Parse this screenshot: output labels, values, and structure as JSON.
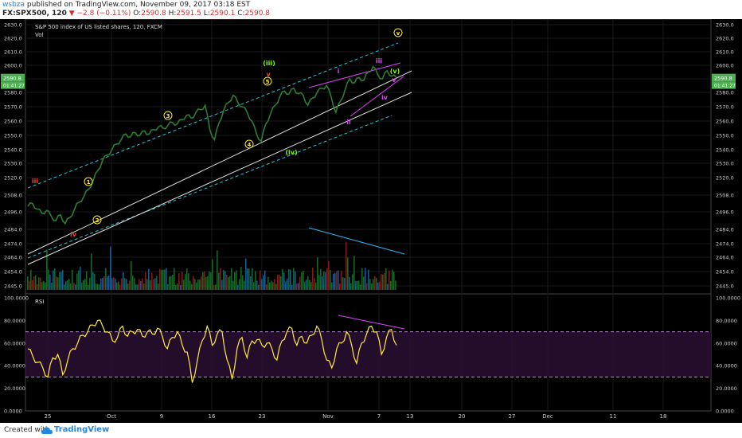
{
  "header": {
    "user": "wsbza",
    "published": " published on TradingView.com, November 09, 2017 03:18 EST",
    "symbol": "FX:SPX500, 120",
    "change": "▼ −2.8 (−0.11%)",
    "ohlc": {
      "o": "2590.8",
      "h": "2591.5",
      "l": "2590.1",
      "c": "2590.8"
    }
  },
  "footer": {
    "created": "Created with",
    "brand": "TradingView"
  },
  "chart_data": [
    {
      "type": "line",
      "title": "S&P 500 index of US listed shares, 120, FXCM",
      "subtitle": "Vol",
      "ylim": [
        2445,
        2630
      ],
      "y_ticks": [
        "2630.0",
        "2620.0",
        "2610.0",
        "2600.0",
        "2590.0",
        "2580.0",
        "2570.0",
        "2560.0",
        "2550.0",
        "2540.0",
        "2530.0",
        "2520.0",
        "2508.0",
        "2496.0",
        "2484.0",
        "2474.0",
        "2464.0",
        "2454.0",
        "2445.0"
      ],
      "price_badge": "2590.8",
      "time_badge": "01:41:27",
      "x_ticks": [
        "25",
        "Oct",
        "9",
        "16",
        "23",
        "Nov",
        "7",
        "13",
        "20",
        "27",
        "Dec",
        "11",
        "18"
      ],
      "series": [
        {
          "values": [
            2500,
            2502,
            2498,
            2495,
            2497,
            2493,
            2490,
            2494,
            2488,
            2492,
            2498,
            2503,
            2507,
            2512,
            2518,
            2525,
            2532,
            2536,
            2540,
            2544,
            2547,
            2551,
            2549,
            2552,
            2550,
            2553,
            2551,
            2554,
            2556,
            2555,
            2557,
            2559,
            2558,
            2561,
            2564,
            2562,
            2566,
            2568,
            2571,
            2554,
            2547,
            2559,
            2568,
            2573,
            2578,
            2573,
            2570,
            2566,
            2560,
            2551,
            2546,
            2558,
            2565,
            2571,
            2577,
            2581,
            2579,
            2583,
            2579,
            2578,
            2571,
            2576,
            2580,
            2583,
            2585,
            2577,
            2566,
            2574,
            2582,
            2590,
            2587,
            2591,
            2589,
            2595,
            2599,
            2593,
            2590,
            2596,
            2592,
            2590.8
          ]
        }
      ],
      "annotations": [
        "iii",
        "1",
        "iv",
        "2",
        "3",
        "4",
        "5",
        "v",
        "(iii)",
        "(iv)",
        "i",
        "ii",
        "iii",
        "iv",
        "v",
        "(v)",
        "v"
      ]
    },
    {
      "type": "line",
      "title": "RSI",
      "ylim": [
        0,
        100
      ],
      "y_ticks": [
        "100.0000",
        "80.0000",
        "60.0000",
        "40.0000",
        "20.0000",
        "0.0000"
      ],
      "bands": [
        30,
        70
      ],
      "series": [
        {
          "values": [
            55,
            48,
            43,
            38,
            30,
            47,
            50,
            32,
            45,
            55,
            60,
            67,
            70,
            76,
            80,
            75,
            70,
            62,
            65,
            75,
            66,
            70,
            72,
            66,
            70,
            68,
            73,
            66,
            55,
            65,
            70,
            58,
            52,
            25,
            44,
            62,
            75,
            58,
            68,
            70,
            45,
            28,
            55,
            65,
            47,
            62,
            63,
            58,
            60,
            55,
            45,
            62,
            70,
            73,
            58,
            66,
            60,
            67,
            75,
            63,
            45,
            38,
            55,
            60,
            70,
            58,
            42,
            60,
            68,
            75,
            70,
            50,
            65,
            72,
            58
          ]
        }
      ]
    }
  ]
}
